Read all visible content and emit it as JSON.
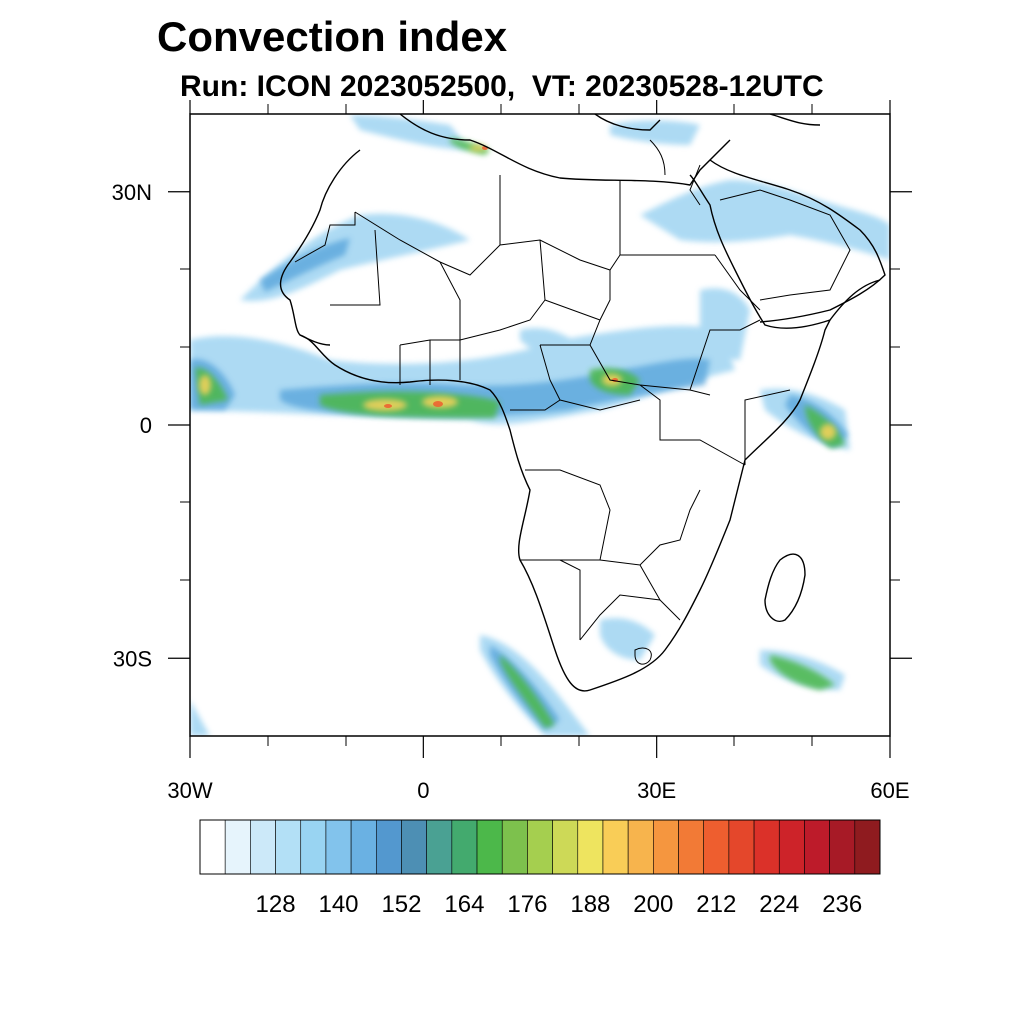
{
  "title": "Convection index",
  "subtitle": "Run: ICON 2023052500,  VT: 20230528-12UTC",
  "map": {
    "lon_range": [
      -30,
      60
    ],
    "lat_range": [
      -40,
      40
    ],
    "lon_tick_labels": [
      {
        "lon": -30,
        "label": "30W"
      },
      {
        "lon": 0,
        "label": "0"
      },
      {
        "lon": 30,
        "label": "30E"
      },
      {
        "lon": 60,
        "label": "60E"
      }
    ],
    "lat_tick_labels": [
      {
        "lat": 30,
        "label": "30N"
      },
      {
        "lat": 0,
        "label": "0"
      },
      {
        "lat": -30,
        "label": "30S"
      }
    ],
    "land_border_color": "#000000"
  },
  "colorbar": {
    "colors": [
      "#ffffff",
      "#e6f4fc",
      "#cce9f9",
      "#b3e0f6",
      "#99d4f2",
      "#82c3ec",
      "#6ab1e3",
      "#5398cf",
      "#4d8fb4",
      "#4aa193",
      "#43aa6e",
      "#4cb84a",
      "#7dc14d",
      "#a5cf4f",
      "#cdd957",
      "#eee45f",
      "#f9cd57",
      "#f7b44d",
      "#f5963f",
      "#f27a36",
      "#ee5e2f",
      "#e4472b",
      "#db3129",
      "#cd2329",
      "#bd1b2a",
      "#a71a26",
      "#8f1b1f"
    ],
    "tick_labels": [
      "128",
      "140",
      "152",
      "164",
      "176",
      "188",
      "200",
      "212",
      "224",
      "236"
    ]
  }
}
